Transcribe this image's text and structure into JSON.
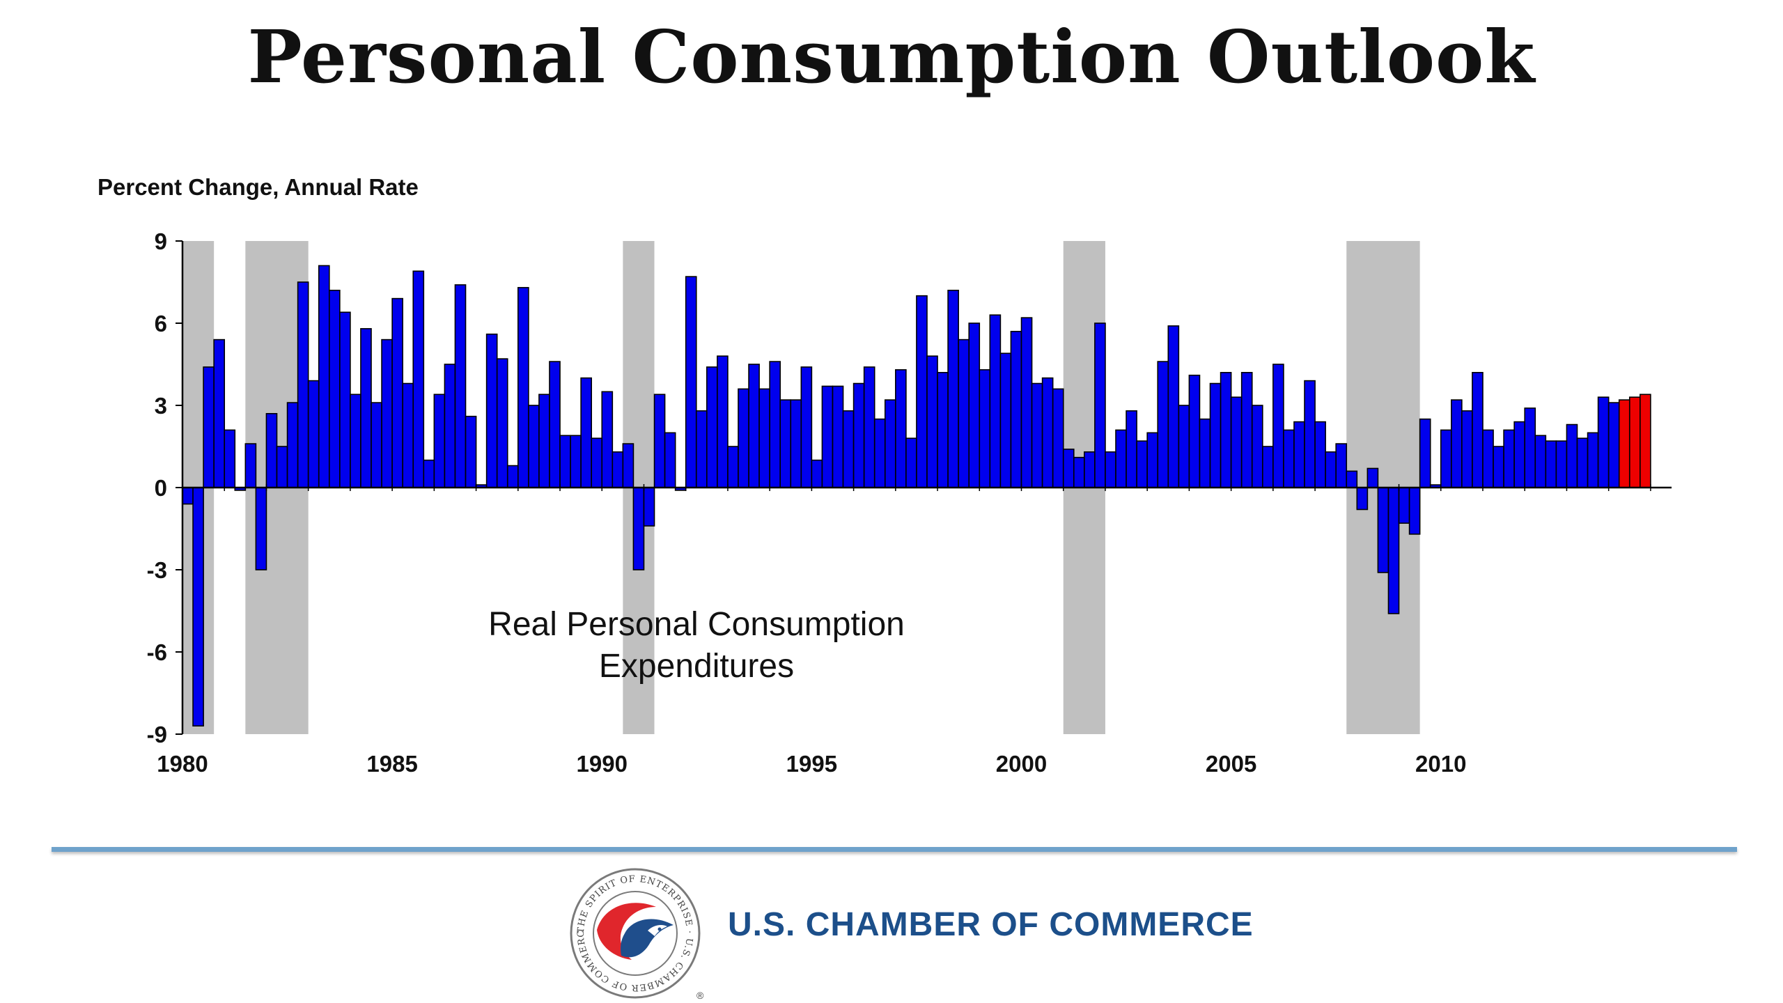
{
  "page": {
    "title": "Personal Consumption Outlook",
    "org_name": "U.S. CHAMBER OF COMMERCE",
    "seal_text": "THE SPIRIT OF ENTERPRISE · U.S. CHAMBER OF COMMERCE"
  },
  "chart_data": {
    "type": "bar",
    "ylabel": "Percent Change, Annual Rate",
    "annotation": [
      "Real Personal Consumption",
      "Expenditures"
    ],
    "ylim": [
      -9,
      9
    ],
    "yticks": [
      9,
      6,
      3,
      0,
      -3,
      -6,
      -9
    ],
    "ytick_labels": [
      "9",
      "6",
      "3",
      "0",
      "-3",
      "-6",
      "-9"
    ],
    "xlim": [
      1980,
      2015.5
    ],
    "xticks": [
      1980,
      1985,
      1990,
      1995,
      2000,
      2005,
      2010
    ],
    "xtick_labels": [
      "1980",
      "1985",
      "1990",
      "1995",
      "2000",
      "2005",
      "2010"
    ],
    "grid": false,
    "legend": "none",
    "colors": {
      "actual": "#0000ee",
      "forecast": "#ee0000",
      "recession": "#c0c0c0"
    },
    "recessions": [
      [
        1980.0,
        1980.75
      ],
      [
        1981.5,
        1983.0
      ],
      [
        1990.5,
        1991.25
      ],
      [
        2001.0,
        2002.0
      ],
      [
        2007.75,
        2009.5
      ]
    ],
    "start_quarter": "1980 Q1",
    "series": [
      {
        "role": "actual",
        "values": [
          -0.6,
          -8.7,
          4.4,
          5.4,
          2.1,
          -0.1,
          1.6,
          -3.0,
          2.7,
          1.5,
          3.1,
          7.5,
          3.9,
          8.1,
          7.2,
          6.4,
          3.4,
          5.8,
          3.1,
          5.4,
          6.9,
          3.8,
          7.9,
          1.0,
          3.4,
          4.5,
          7.4,
          2.6,
          0.1,
          5.6,
          4.7,
          0.8,
          7.3,
          3.0,
          3.4,
          4.6,
          1.9,
          1.9,
          4.0,
          1.8,
          3.5,
          1.3,
          1.6,
          -3.0,
          -1.4,
          3.4,
          2.0,
          -0.1,
          7.7,
          2.8,
          4.4,
          4.8,
          1.5,
          3.6,
          4.5,
          3.6,
          4.6,
          3.2,
          3.2,
          4.4,
          1.0,
          3.7,
          3.7,
          2.8,
          3.8,
          4.4,
          2.5,
          3.2,
          4.3,
          1.8,
          7.0,
          4.8,
          4.2,
          7.2,
          5.4,
          6.0,
          4.3,
          6.3,
          4.9,
          5.7,
          6.2,
          3.8,
          4.0,
          3.6,
          1.4,
          1.1,
          1.3,
          6.0,
          1.3,
          2.1,
          2.8,
          1.7,
          2.0,
          4.6,
          5.9,
          3.0,
          4.1,
          2.5,
          3.8,
          4.2,
          3.3,
          4.2,
          3.0,
          1.5,
          4.5,
          2.1,
          2.4,
          3.9,
          2.4,
          1.3,
          1.6,
          0.6,
          -0.8,
          0.7,
          -3.1,
          -4.6,
          -1.3,
          -1.7,
          2.5,
          0.1,
          2.1,
          3.2,
          2.8,
          4.2,
          2.1,
          1.5,
          2.1,
          2.4,
          2.9,
          1.9,
          1.7,
          1.7,
          2.3,
          1.8,
          2.0,
          3.3,
          3.1
        ]
      },
      {
        "role": "forecast",
        "values": [
          3.2,
          3.3,
          3.4
        ]
      }
    ]
  }
}
